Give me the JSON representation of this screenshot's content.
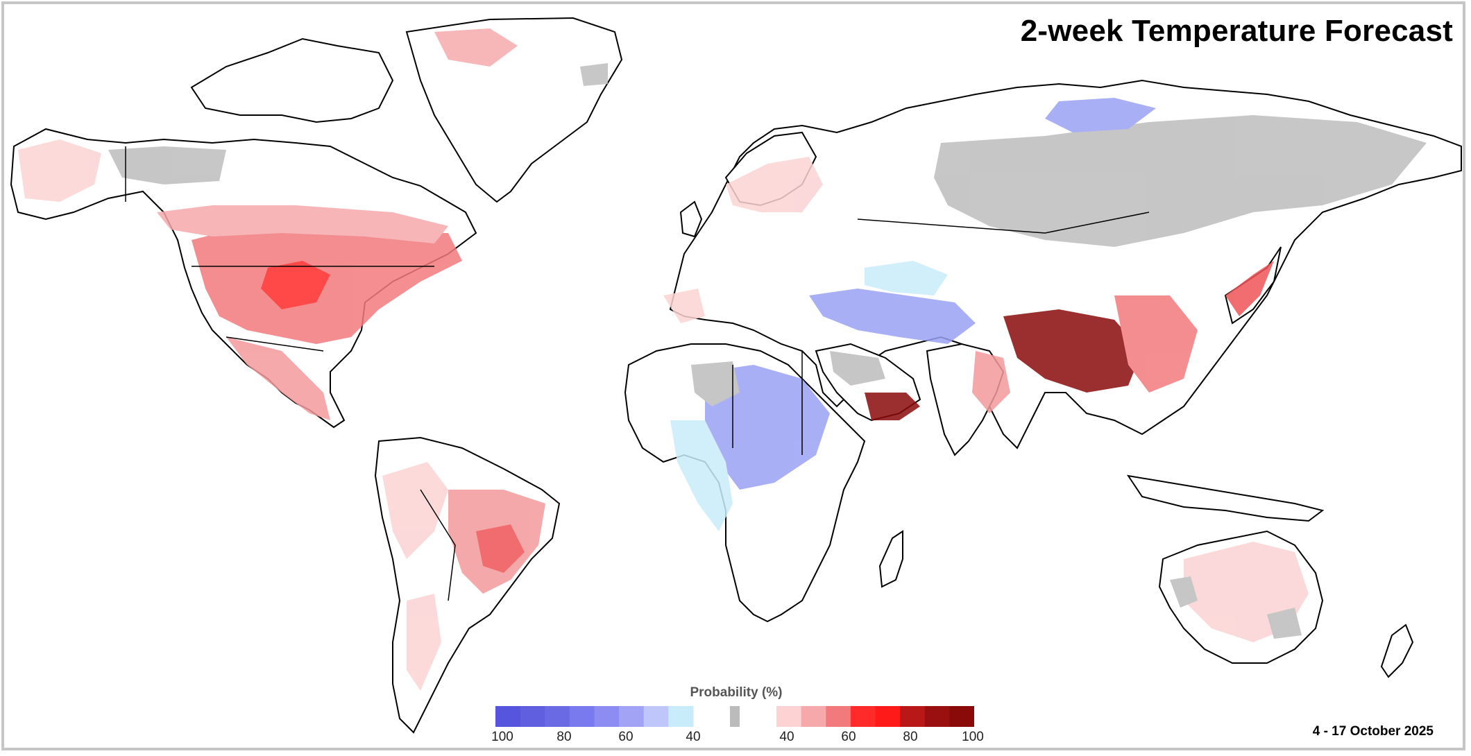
{
  "title": "2-week Temperature Forecast",
  "date_range": "4 - 17 October 2025",
  "legend": {
    "title": "Probability (%)",
    "below_normal_ticks": [
      "100",
      "80",
      "60",
      "40"
    ],
    "above_normal_ticks": [
      "40",
      "60",
      "80",
      "100"
    ],
    "below_colors": [
      "#5555dd",
      "#5f5fe0",
      "#6a6ae4",
      "#7a7aef",
      "#8c8cf2",
      "#a3a3f6",
      "#bfc6fa",
      "#c9ecfb"
    ],
    "near_normal_color": "#bbbbbb",
    "above_colors": [
      "#fcd2d2",
      "#f6a9ab",
      "#f27a7d",
      "#ff2a2a",
      "#ff1a1a",
      "#b81818",
      "#9a1010",
      "#8a0a0a"
    ]
  },
  "colors": {
    "frame": "#c6c6c6",
    "warm_light": "#fbd3d4",
    "warm_mid": "#f39a9c",
    "warm_strong": "#ef5357",
    "warm_intense": "#8b0d0d",
    "cold_light": "#c9ecfb",
    "cold_mid": "#9aa2f4",
    "near_normal": "#bdbdbd"
  }
}
